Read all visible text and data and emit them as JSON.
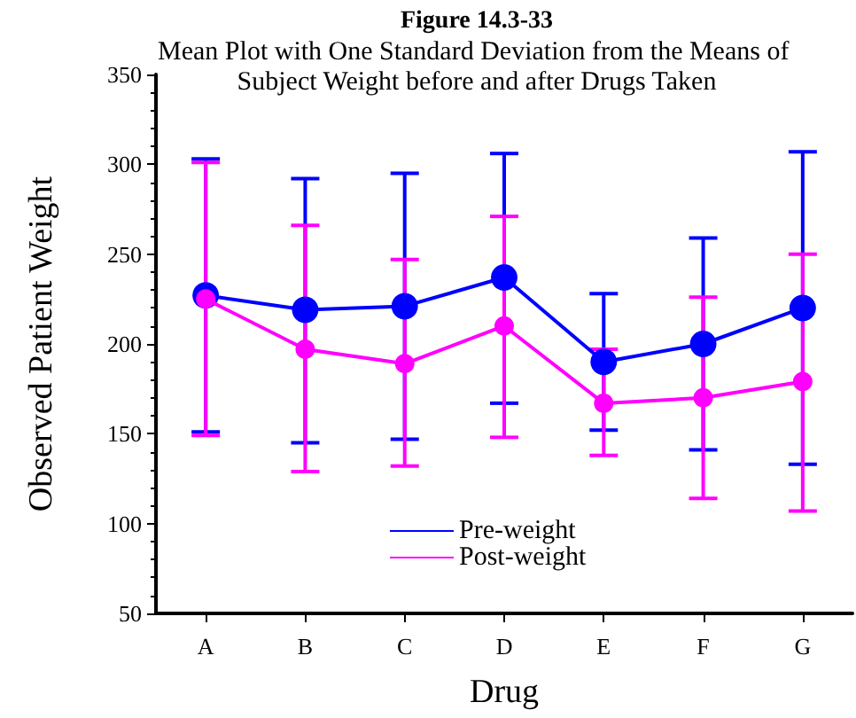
{
  "chart_data": {
    "type": "line",
    "title": "Figure 14.3-33",
    "subtitle": "Mean Plot with One Standard Deviation from the Means of Subject Weight before and after Drugs Taken",
    "xlabel": "Drug",
    "ylabel": "Observed Patient Weight",
    "categories": [
      "A",
      "B",
      "C",
      "D",
      "E",
      "F",
      "G"
    ],
    "series": [
      {
        "name": "Pre-weight",
        "color": "#0000ff",
        "values": [
          227,
          219,
          221,
          237,
          190,
          200,
          220
        ],
        "errors": [
          [
            151,
            303
          ],
          [
            145,
            292
          ],
          [
            147,
            295
          ],
          [
            167,
            306
          ],
          [
            152,
            228
          ],
          [
            141,
            259
          ],
          [
            133,
            307
          ]
        ]
      },
      {
        "name": "Post-weight",
        "color": "#ff00ff",
        "values": [
          225,
          197,
          189,
          210,
          167,
          170,
          179
        ],
        "errors": [
          [
            149,
            301
          ],
          [
            129,
            266
          ],
          [
            132,
            247
          ],
          [
            148,
            271
          ],
          [
            138,
            197
          ],
          [
            114,
            226
          ],
          [
            107,
            250
          ]
        ]
      }
    ],
    "ylim": [
      50,
      350
    ],
    "yticks": [
      50,
      100,
      150,
      200,
      250,
      300,
      350
    ],
    "grid": false,
    "legend": "bottom",
    "marker": "circle",
    "line_style": "solid"
  }
}
